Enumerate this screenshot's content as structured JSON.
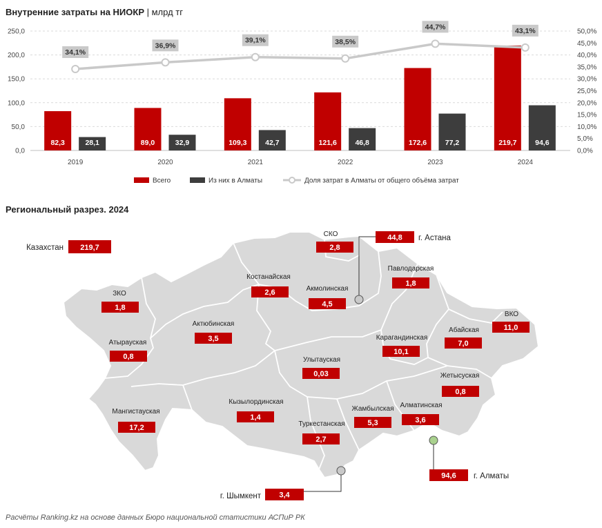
{
  "header": {
    "title": "Внутренние затраты на НИОКР",
    "unit": "| млрд тг"
  },
  "chart_data": [
    {
      "type": "bar",
      "categories": [
        "2019",
        "2020",
        "2021",
        "2022",
        "2023",
        "2024"
      ],
      "series": [
        {
          "name": "Всего",
          "values": [
            82.3,
            89.0,
            109.3,
            121.6,
            172.6,
            219.7
          ],
          "labels": [
            "82,3",
            "89,0",
            "109,3",
            "121,6",
            "172,6",
            "219,7"
          ],
          "color": "#c00000"
        },
        {
          "name": "Из них в Алматы",
          "values": [
            28.1,
            32.9,
            42.7,
            46.8,
            77.2,
            94.6
          ],
          "labels": [
            "28,1",
            "32,9",
            "42,7",
            "46,8",
            "77,2",
            "94,6"
          ],
          "color": "#3d3d3d"
        },
        {
          "name": "Доля затрат в Алматы от общего объёма затрат",
          "type": "line",
          "axis": "right",
          "values": [
            34.1,
            36.9,
            39.1,
            38.5,
            44.7,
            43.1
          ],
          "labels": [
            "34,1%",
            "36,9%",
            "39,1%",
            "38,5%",
            "44,7%",
            "43,1%"
          ],
          "color": "#c9c9c9"
        }
      ],
      "ylim": [
        0,
        250
      ],
      "y_ticks": [
        "0,0",
        "50,0",
        "100,0",
        "150,0",
        "200,0",
        "250,0"
      ],
      "y2lim": [
        0,
        50
      ],
      "y2_ticks": [
        "0,0%",
        "5,0%",
        "10,0%",
        "15,0%",
        "20,0%",
        "25,0%",
        "30,0%",
        "35,0%",
        "40,0%",
        "45,0%",
        "50,0%"
      ],
      "grid": true,
      "legend": "bottom"
    }
  ],
  "map": {
    "title": "Региональный разрез. 2024",
    "kazakhstan": {
      "name": "Казахстан",
      "value": "219,7"
    },
    "regions": [
      {
        "name": "СКО",
        "value": "2,8"
      },
      {
        "name": "Костанайская",
        "value": "2,6"
      },
      {
        "name": "Акмолинская",
        "value": "4,5"
      },
      {
        "name": "Павлодарская",
        "value": "1,8"
      },
      {
        "name": "ЗКО",
        "value": "1,8"
      },
      {
        "name": "Актюбинская",
        "value": "3,5"
      },
      {
        "name": "ВКО",
        "value": "11,0"
      },
      {
        "name": "Абайская",
        "value": "7,0"
      },
      {
        "name": "Атырауская",
        "value": "0,8"
      },
      {
        "name": "Карагандинская",
        "value": "10,1"
      },
      {
        "name": "Улытауская",
        "value": "0,03"
      },
      {
        "name": "Жетысуская",
        "value": "0,8"
      },
      {
        "name": "Кызылординская",
        "value": "1,4"
      },
      {
        "name": "Жамбылская",
        "value": "5,3"
      },
      {
        "name": "Алматинская",
        "value": "3,6"
      },
      {
        "name": "Мангистауская",
        "value": "17,2"
      },
      {
        "name": "Туркестанская",
        "value": "2,7"
      }
    ],
    "cities": [
      {
        "name": "г. Астана",
        "value": "44,8"
      },
      {
        "name": "г. Алматы",
        "value": "94,6"
      },
      {
        "name": "г. Шымкент",
        "value": "3,4"
      }
    ]
  },
  "footer": "Расчёты Ranking.kz на основе данных Бюро национальной статистики АСПиР РК"
}
